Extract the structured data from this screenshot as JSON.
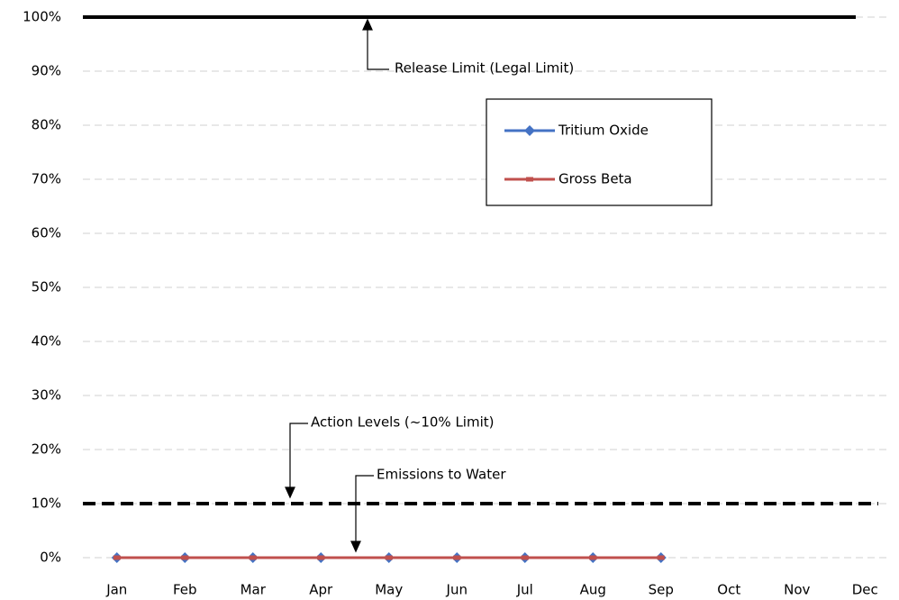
{
  "chart_data": {
    "type": "line",
    "categories": [
      "Jan",
      "Feb",
      "Mar",
      "Apr",
      "May",
      "Jun",
      "Jul",
      "Aug",
      "Sep",
      "Oct",
      "Nov",
      "Dec"
    ],
    "series": [
      {
        "name": "Tritium Oxide",
        "color": "#4472c4",
        "marker": "diamond",
        "values": [
          0,
          0,
          0,
          0,
          0,
          0,
          0,
          0,
          0,
          null,
          null,
          null
        ]
      },
      {
        "name": "Gross Beta",
        "color": "#c0504d",
        "marker": "dash",
        "values": [
          0,
          0,
          0,
          0,
          0,
          0,
          0,
          0,
          0,
          null,
          null,
          null
        ]
      }
    ],
    "reference_lines": [
      {
        "value": 100,
        "style": "solid",
        "color": "#000000"
      },
      {
        "value": 10,
        "style": "dashed",
        "color": "#000000"
      }
    ],
    "annotations": [
      "Release Limit (Legal Limit)",
      "Action Levels (~10% Limit)",
      "Emissions to Water"
    ],
    "ylim": [
      0,
      100
    ],
    "yticks": [
      {
        "value": 0,
        "label": "0%"
      },
      {
        "value": 10,
        "label": "10%"
      },
      {
        "value": 20,
        "label": "20%"
      },
      {
        "value": 30,
        "label": "30%"
      },
      {
        "value": 40,
        "label": "40%"
      },
      {
        "value": 50,
        "label": "50%"
      },
      {
        "value": 60,
        "label": "60%"
      },
      {
        "value": 70,
        "label": "70%"
      },
      {
        "value": 80,
        "label": "80%"
      },
      {
        "value": 90,
        "label": "90%"
      },
      {
        "value": 100,
        "label": "100%"
      }
    ],
    "grid": true,
    "legend": "inside"
  }
}
